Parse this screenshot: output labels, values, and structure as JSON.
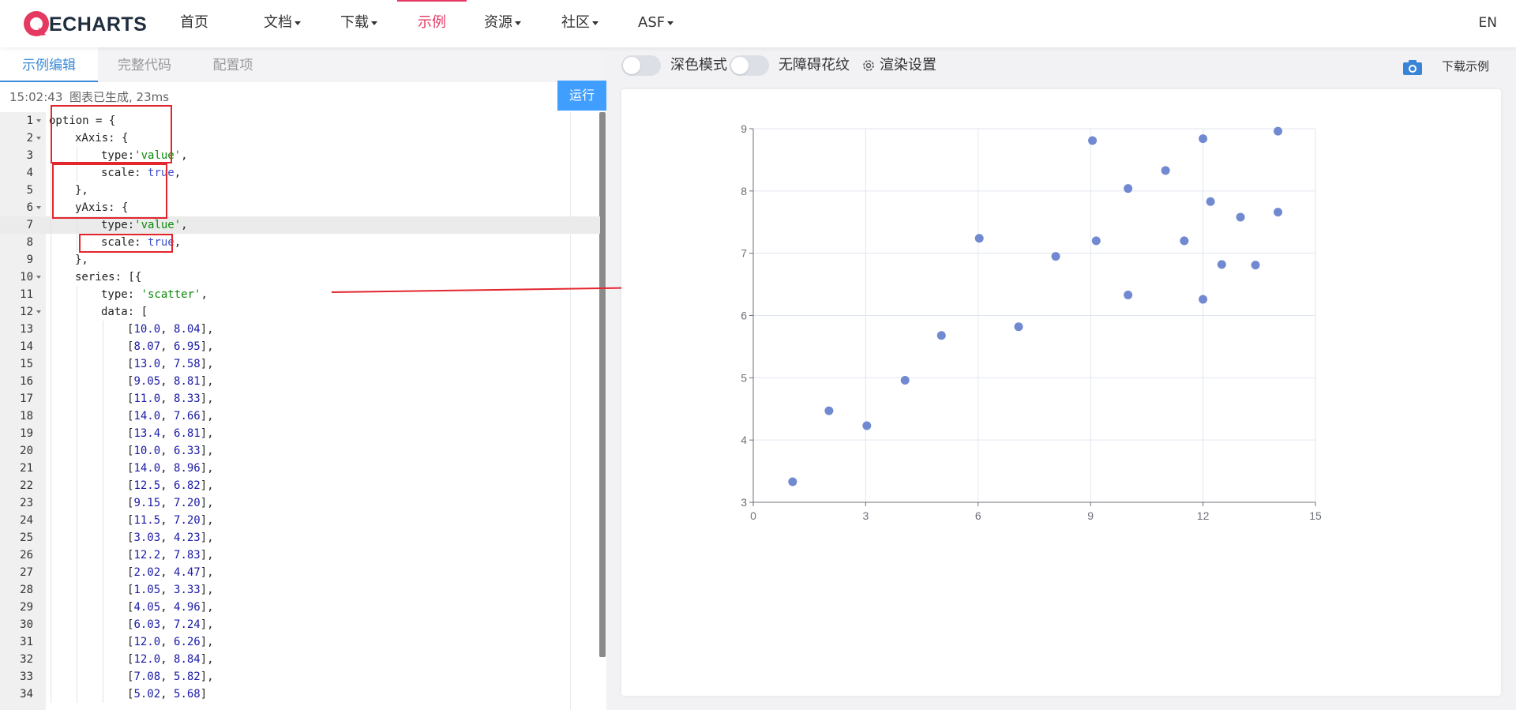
{
  "header": {
    "logo_text": "ECHARTS",
    "nav": [
      {
        "label": "首页",
        "dropdown": false,
        "active": false
      },
      {
        "label": "文档",
        "dropdown": true,
        "active": false
      },
      {
        "label": "下载",
        "dropdown": true,
        "active": false
      },
      {
        "label": "示例",
        "dropdown": false,
        "active": true
      },
      {
        "label": "资源",
        "dropdown": true,
        "active": false
      },
      {
        "label": "社区",
        "dropdown": true,
        "active": false
      },
      {
        "label": "ASF",
        "dropdown": true,
        "active": false
      }
    ],
    "lang": "EN",
    "accent_color": "#e43961"
  },
  "editor": {
    "tabs": [
      {
        "label": "示例编辑",
        "active": true
      },
      {
        "label": "完整代码",
        "active": false
      },
      {
        "label": "配置项",
        "active": false
      }
    ],
    "status_time": "15:02:43",
    "status_msg": "图表已生成, 23ms",
    "run_label": "运行",
    "highlighted_line": 7,
    "code_lines": [
      {
        "n": "1",
        "fold": true,
        "indent": 0,
        "html": "option = {"
      },
      {
        "n": "2",
        "fold": true,
        "indent": 1,
        "html": "xAxis: {"
      },
      {
        "n": "3",
        "fold": false,
        "indent": 2,
        "html": "type:<span class=\"str\">'value'</span>,"
      },
      {
        "n": "4",
        "fold": false,
        "indent": 2,
        "html": "scale: <span class=\"kw\">true</span>,"
      },
      {
        "n": "5",
        "fold": false,
        "indent": 1,
        "html": "},"
      },
      {
        "n": "6",
        "fold": true,
        "indent": 1,
        "html": "yAxis: {"
      },
      {
        "n": "7",
        "fold": false,
        "indent": 2,
        "html": "type:<span class=\"str\">'value'</span>,"
      },
      {
        "n": "8",
        "fold": false,
        "indent": 2,
        "html": "scale: <span class=\"kw\">true</span>,"
      },
      {
        "n": "9",
        "fold": false,
        "indent": 1,
        "html": "},"
      },
      {
        "n": "10",
        "fold": true,
        "indent": 1,
        "html": "series: [{"
      },
      {
        "n": "11",
        "fold": false,
        "indent": 2,
        "html": "type: <span class=\"str\">'scatter'</span>,"
      },
      {
        "n": "12",
        "fold": true,
        "indent": 2,
        "html": "data: ["
      },
      {
        "n": "13",
        "fold": false,
        "indent": 3,
        "html": "[<span class=\"num\">10.0</span>, <span class=\"num\">8.04</span>],"
      },
      {
        "n": "14",
        "fold": false,
        "indent": 3,
        "html": "[<span class=\"num\">8.07</span>, <span class=\"num\">6.95</span>],"
      },
      {
        "n": "15",
        "fold": false,
        "indent": 3,
        "html": "[<span class=\"num\">13.0</span>, <span class=\"num\">7.58</span>],"
      },
      {
        "n": "16",
        "fold": false,
        "indent": 3,
        "html": "[<span class=\"num\">9.05</span>, <span class=\"num\">8.81</span>],"
      },
      {
        "n": "17",
        "fold": false,
        "indent": 3,
        "html": "[<span class=\"num\">11.0</span>, <span class=\"num\">8.33</span>],"
      },
      {
        "n": "18",
        "fold": false,
        "indent": 3,
        "html": "[<span class=\"num\">14.0</span>, <span class=\"num\">7.66</span>],"
      },
      {
        "n": "19",
        "fold": false,
        "indent": 3,
        "html": "[<span class=\"num\">13.4</span>, <span class=\"num\">6.81</span>],"
      },
      {
        "n": "20",
        "fold": false,
        "indent": 3,
        "html": "[<span class=\"num\">10.0</span>, <span class=\"num\">6.33</span>],"
      },
      {
        "n": "21",
        "fold": false,
        "indent": 3,
        "html": "[<span class=\"num\">14.0</span>, <span class=\"num\">8.96</span>],"
      },
      {
        "n": "22",
        "fold": false,
        "indent": 3,
        "html": "[<span class=\"num\">12.5</span>, <span class=\"num\">6.82</span>],"
      },
      {
        "n": "23",
        "fold": false,
        "indent": 3,
        "html": "[<span class=\"num\">9.15</span>, <span class=\"num\">7.20</span>],"
      },
      {
        "n": "24",
        "fold": false,
        "indent": 3,
        "html": "[<span class=\"num\">11.5</span>, <span class=\"num\">7.20</span>],"
      },
      {
        "n": "25",
        "fold": false,
        "indent": 3,
        "html": "[<span class=\"num\">3.03</span>, <span class=\"num\">4.23</span>],"
      },
      {
        "n": "26",
        "fold": false,
        "indent": 3,
        "html": "[<span class=\"num\">12.2</span>, <span class=\"num\">7.83</span>],"
      },
      {
        "n": "27",
        "fold": false,
        "indent": 3,
        "html": "[<span class=\"num\">2.02</span>, <span class=\"num\">4.47</span>],"
      },
      {
        "n": "28",
        "fold": false,
        "indent": 3,
        "html": "[<span class=\"num\">1.05</span>, <span class=\"num\">3.33</span>],"
      },
      {
        "n": "29",
        "fold": false,
        "indent": 3,
        "html": "[<span class=\"num\">4.05</span>, <span class=\"num\">4.96</span>],"
      },
      {
        "n": "30",
        "fold": false,
        "indent": 3,
        "html": "[<span class=\"num\">6.03</span>, <span class=\"num\">7.24</span>],"
      },
      {
        "n": "31",
        "fold": false,
        "indent": 3,
        "html": "[<span class=\"num\">12.0</span>, <span class=\"num\">6.26</span>],"
      },
      {
        "n": "32",
        "fold": false,
        "indent": 3,
        "html": "[<span class=\"num\">12.0</span>, <span class=\"num\">8.84</span>],"
      },
      {
        "n": "33",
        "fold": false,
        "indent": 3,
        "html": "[<span class=\"num\">7.08</span>, <span class=\"num\">5.82</span>],"
      },
      {
        "n": "34",
        "fold": false,
        "indent": 3,
        "html": "[<span class=\"num\">5.02</span>, <span class=\"num\">5.68</span>]"
      }
    ]
  },
  "preview": {
    "dark_mode_label": "深色模式",
    "decal_label": "无障碍花纹",
    "render_settings_label": "渲染设置",
    "download_label": "下载示例",
    "camera_icon": "camera-icon",
    "gear_icon": "gear-icon"
  },
  "chart_data": {
    "type": "scatter",
    "title": "",
    "xlabel": "",
    "ylabel": "",
    "xlim": [
      0,
      15
    ],
    "ylim": [
      3,
      9
    ],
    "xticks": [
      0,
      3,
      6,
      9,
      12,
      15
    ],
    "yticks": [
      3,
      4,
      5,
      6,
      7,
      8,
      9
    ],
    "grid": true,
    "point_color": "#7189d1",
    "series": [
      {
        "points": [
          [
            10.0,
            8.04
          ],
          [
            8.07,
            6.95
          ],
          [
            13.0,
            7.58
          ],
          [
            9.05,
            8.81
          ],
          [
            11.0,
            8.33
          ],
          [
            14.0,
            7.66
          ],
          [
            13.4,
            6.81
          ],
          [
            10.0,
            6.33
          ],
          [
            14.0,
            8.96
          ],
          [
            12.5,
            6.82
          ],
          [
            9.15,
            7.2
          ],
          [
            11.5,
            7.2
          ],
          [
            3.03,
            4.23
          ],
          [
            12.2,
            7.83
          ],
          [
            2.02,
            4.47
          ],
          [
            1.05,
            3.33
          ],
          [
            4.05,
            4.96
          ],
          [
            6.03,
            7.24
          ],
          [
            12.0,
            6.26
          ],
          [
            12.0,
            8.84
          ],
          [
            7.08,
            5.82
          ],
          [
            5.02,
            5.68
          ]
        ]
      }
    ]
  }
}
